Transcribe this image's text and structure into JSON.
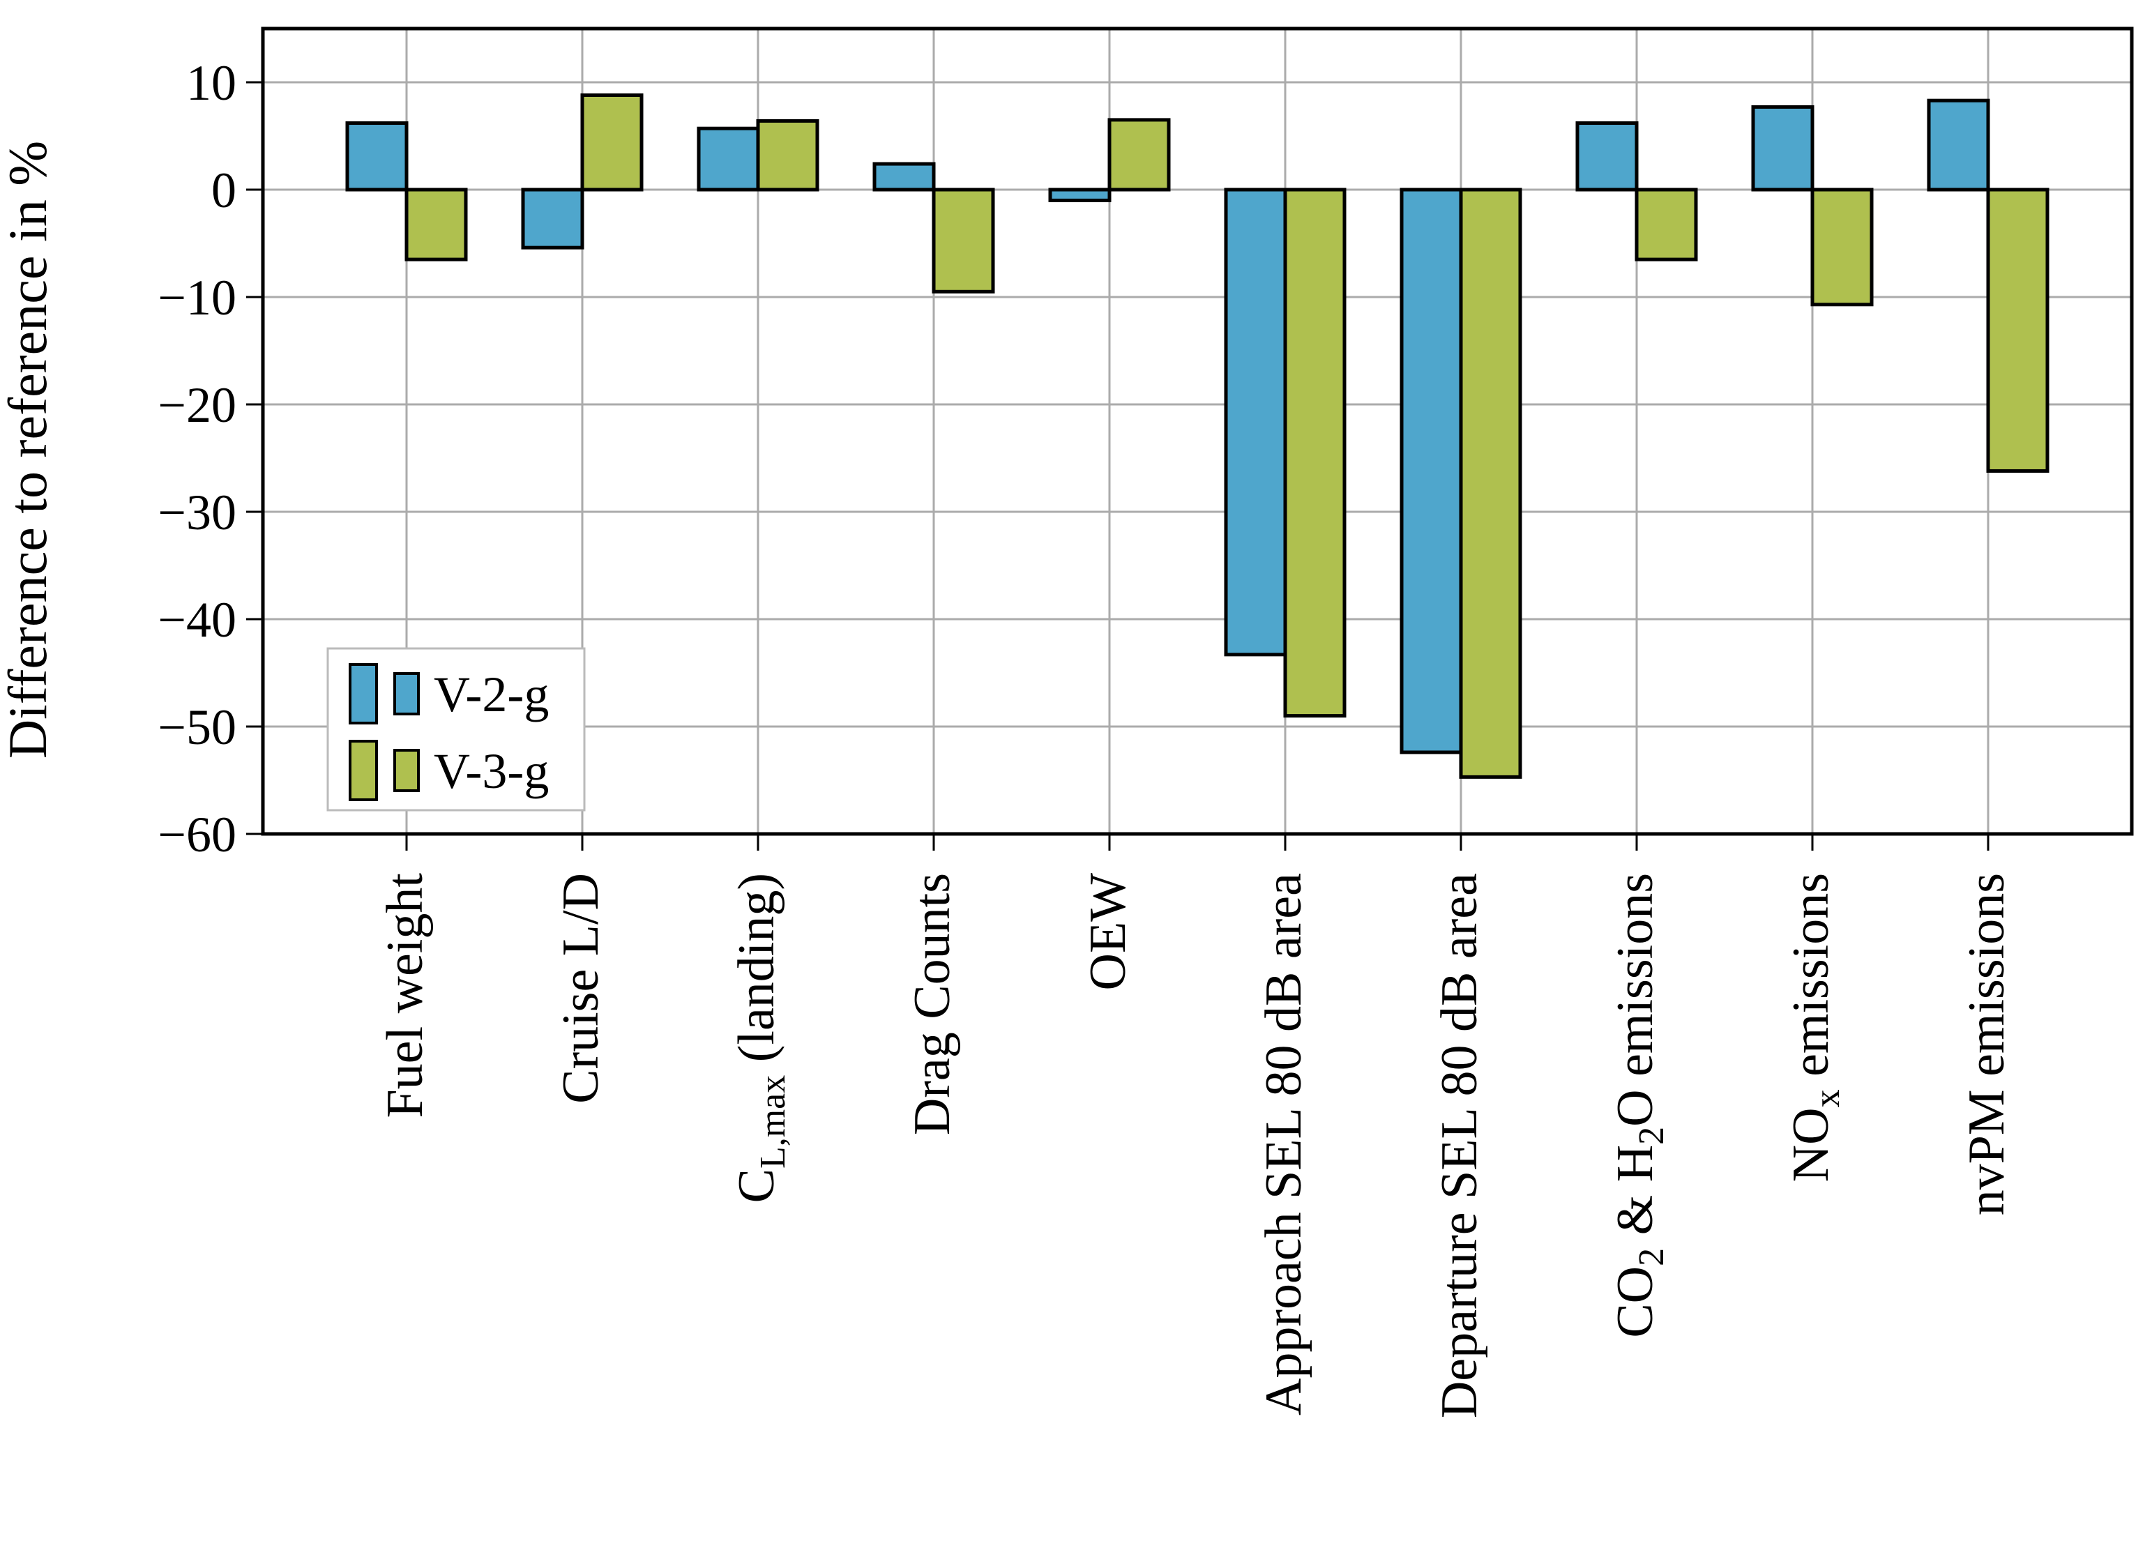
{
  "chart_data": {
    "type": "bar",
    "title": "",
    "xlabel": "",
    "ylabel": "Difference to reference in %",
    "ylim": [
      -60,
      15
    ],
    "yticks": [
      10,
      0,
      -10,
      -20,
      -30,
      -40,
      -50,
      -60
    ],
    "grid": true,
    "legend_position": "lower left",
    "categories": [
      "Fuel weight",
      "Cruise L/D",
      "C_L,max (landing)",
      "Drag Counts",
      "OEW",
      "Approach SEL 80 dB area",
      "Departure SEL 80 dB area",
      "CO2 & H2O emissions",
      "NOx emissions",
      "nvPM emissions"
    ],
    "categories_rich": [
      [
        {
          "t": "Fuel weight"
        }
      ],
      [
        {
          "t": "Cruise L/D"
        }
      ],
      [
        {
          "t": "C"
        },
        {
          "t": "L,max",
          "sub": true
        },
        {
          "t": " (landing)"
        }
      ],
      [
        {
          "t": "Drag Counts"
        }
      ],
      [
        {
          "t": "OEW"
        }
      ],
      [
        {
          "t": "Approach SEL 80 dB area"
        }
      ],
      [
        {
          "t": "Departure SEL 80 dB area"
        }
      ],
      [
        {
          "t": "CO"
        },
        {
          "t": "2",
          "sub": true
        },
        {
          "t": " & H"
        },
        {
          "t": "2",
          "sub": true
        },
        {
          "t": "O emissions"
        }
      ],
      [
        {
          "t": "NO"
        },
        {
          "t": "x",
          "sub": true
        },
        {
          "t": " emissions"
        }
      ],
      [
        {
          "t": "nvPM emissions"
        }
      ]
    ],
    "series": [
      {
        "name": "V-2-g",
        "color": "#4FA6CC",
        "values": [
          6.2,
          -5.4,
          5.7,
          2.4,
          -1.0,
          -43.3,
          -52.4,
          6.2,
          7.7,
          8.3
        ]
      },
      {
        "name": "V-3-g",
        "color": "#AFC04F",
        "values": [
          -6.5,
          8.8,
          6.4,
          -9.5,
          6.5,
          -49.0,
          -54.7,
          -6.5,
          -10.7,
          -26.2
        ]
      }
    ],
    "colors": {
      "bar_edge": "#000000",
      "grid": "#ababab",
      "spine": "#000000",
      "legend_border": "#bbbbbb",
      "background": "#ffffff"
    }
  },
  "legend": {
    "entries": [
      {
        "label": "V-2-g",
        "color": "#4FA6CC"
      },
      {
        "label": "V-3-g",
        "color": "#AFC04F"
      }
    ]
  }
}
